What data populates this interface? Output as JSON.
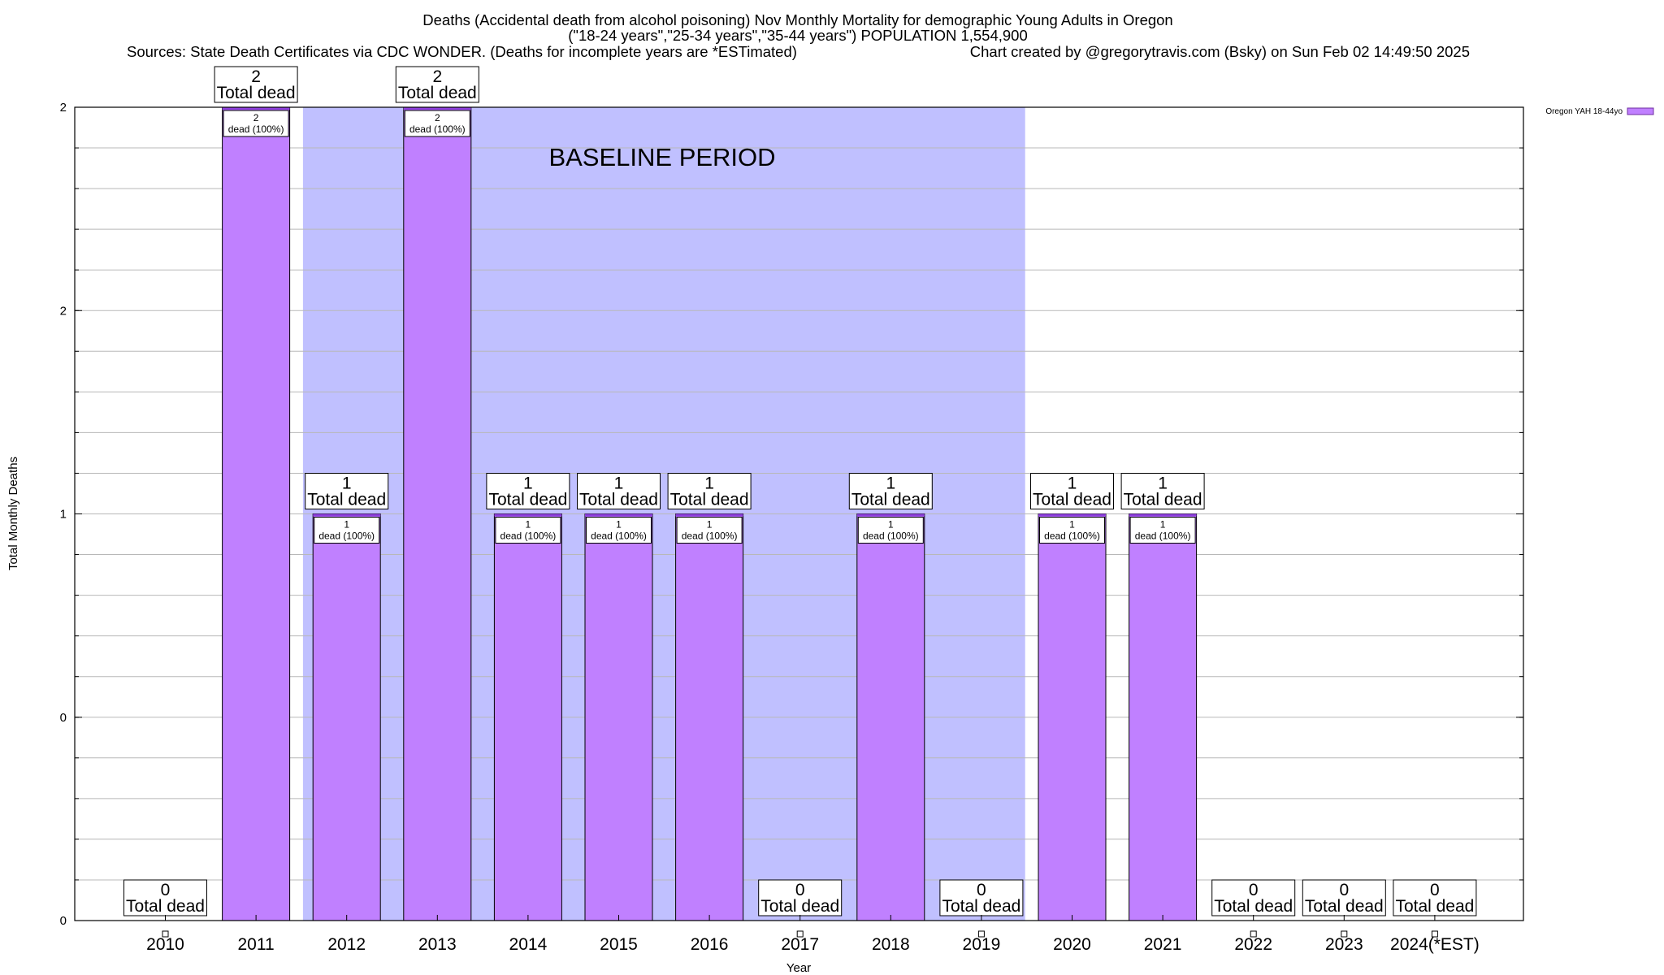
{
  "chart_data": {
    "type": "bar",
    "title_lines": [
      "Deaths (Accidental death from alcohol poisoning) Nov Monthly Mortality for demographic Young Adults in Oregon",
      "(\"18-24 years\",\"25-34 years\",\"35-44 years\") POPULATION 1,554,900",
      "Sources: State Death Certificates via CDC WONDER. (Deaths for incomplete years are *ESTimated)"
    ],
    "credit": "Chart created by @gregorytravis.com (Bsky) on Sun Feb 02 14:49:50 2025",
    "xlabel": "Year",
    "ylabel": "Total Monthly Deaths",
    "ylim": [
      0,
      2
    ],
    "ytick_labels": [
      "0",
      "0",
      "1",
      "2",
      "2"
    ],
    "categories": [
      "2010",
      "2011",
      "2012",
      "2013",
      "2014",
      "2015",
      "2016",
      "2017",
      "2018",
      "2019",
      "2020",
      "2021",
      "2022",
      "2023",
      "2024(*EST)"
    ],
    "series": [
      {
        "name": "Oregon YAH 18-44yo",
        "color": "#c080ff",
        "values": [
          0,
          2,
          1,
          2,
          1,
          1,
          1,
          0,
          1,
          0,
          1,
          1,
          0,
          0,
          0
        ]
      }
    ],
    "total_labels": [
      "0",
      "2",
      "1",
      "2",
      "1",
      "1",
      "1",
      "0",
      "1",
      "0",
      "1",
      "1",
      "0",
      "0",
      "0"
    ],
    "total_suffix": "Total dead",
    "inner_suffix": "dead (100%)",
    "baseline": {
      "label": "BASELINE PERIOD",
      "start": "2012",
      "end": "2019",
      "color": "#c0c0ff"
    },
    "legend": {
      "label": "Oregon YAH 18-44yo",
      "position": "top-right"
    }
  }
}
